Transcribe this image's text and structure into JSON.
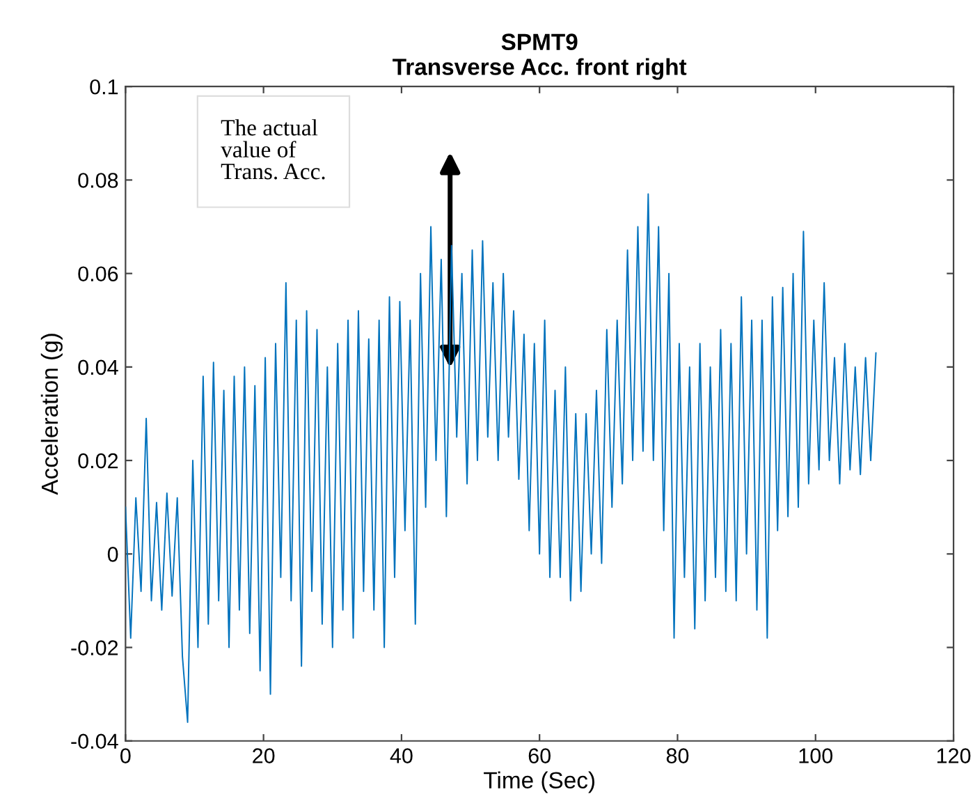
{
  "chart_data": {
    "type": "line",
    "title": "SPMT9\nTransverse Acc. front right",
    "xlabel": "Time (Sec)",
    "ylabel": "Acceleration (g)",
    "xlim": [
      0,
      120
    ],
    "xticks": [
      0,
      20,
      40,
      60,
      80,
      100,
      120
    ],
    "ylim": [
      -0.04,
      0.1
    ],
    "yticks": [
      -0.04,
      -0.02,
      0,
      0.02,
      0.04,
      0.06,
      0.08,
      0.1
    ],
    "grid": false,
    "legend": false,
    "marker": "none",
    "line_style": "solid",
    "annotations": [
      "The actual\nvalue of\nTrans. Acc."
    ],
    "series": [
      {
        "color": "#0072bd",
        "x": [
          0,
          0.75,
          1.5,
          2.25,
          3,
          3.75,
          4.5,
          5.25,
          6,
          6.75,
          7.5,
          8.25,
          9,
          9.75,
          10.5,
          11.25,
          12,
          12.75,
          13.5,
          14.25,
          15,
          15.75,
          16.5,
          17.25,
          18,
          18.75,
          19.5,
          20.25,
          21,
          21.75,
          22.5,
          23.25,
          24,
          24.75,
          25.5,
          26.25,
          27,
          27.75,
          28.5,
          29.25,
          30,
          30.75,
          31.5,
          32.25,
          33,
          33.75,
          34.5,
          35.25,
          36,
          36.75,
          37.5,
          38.25,
          39,
          39.75,
          40.5,
          41.25,
          42,
          42.75,
          43.5,
          44.25,
          45,
          45.75,
          46.5,
          47.25,
          48,
          48.75,
          49.5,
          50.25,
          51,
          51.75,
          52.5,
          53.25,
          54,
          54.75,
          55.5,
          56.25,
          57,
          57.75,
          58.5,
          59.25,
          60,
          60.75,
          61.5,
          62.25,
          63,
          63.75,
          64.5,
          65.25,
          66,
          66.75,
          67.5,
          68.25,
          69,
          69.75,
          70.5,
          71.25,
          72,
          72.75,
          73.5,
          74.25,
          75,
          75.75,
          76.5,
          77.25,
          78,
          78.75,
          79.5,
          80.25,
          81,
          81.75,
          82.5,
          83.25,
          84,
          84.75,
          85.5,
          86.25,
          87,
          87.75,
          88.5,
          89.25,
          90,
          90.75,
          91.5,
          92.25,
          93,
          93.75,
          94.5,
          95.25,
          96,
          96.75,
          97.5,
          98.25,
          99,
          99.75,
          100.5,
          101.25,
          102,
          102.75,
          103.5,
          104.25,
          105,
          105.75,
          106.5,
          107.25,
          108,
          108.75
        ],
        "values": [
          0.01,
          -0.018,
          0.012,
          -0.008,
          0.029,
          -0.01,
          0.011,
          -0.012,
          0.013,
          -0.009,
          0.012,
          -0.022,
          -0.036,
          0.02,
          -0.02,
          0.038,
          -0.015,
          0.041,
          -0.01,
          0.035,
          -0.02,
          0.038,
          -0.012,
          0.04,
          -0.017,
          0.036,
          -0.025,
          0.042,
          -0.03,
          0.045,
          -0.005,
          0.058,
          -0.01,
          0.05,
          -0.024,
          0.052,
          -0.008,
          0.048,
          -0.015,
          0.04,
          -0.02,
          0.045,
          -0.012,
          0.05,
          -0.018,
          0.052,
          -0.008,
          0.046,
          -0.012,
          0.05,
          -0.02,
          0.055,
          -0.005,
          0.054,
          0.005,
          0.05,
          -0.015,
          0.06,
          0.01,
          0.07,
          0.02,
          0.063,
          0.008,
          0.066,
          0.025,
          0.06,
          0.015,
          0.065,
          0.02,
          0.067,
          0.025,
          0.058,
          0.02,
          0.06,
          0.025,
          0.052,
          0.016,
          0.047,
          0.005,
          0.045,
          0.0,
          0.05,
          -0.005,
          0.035,
          -0.005,
          0.04,
          -0.01,
          0.03,
          -0.008,
          0.03,
          0.0,
          0.035,
          -0.002,
          0.048,
          0.01,
          0.05,
          0.015,
          0.065,
          0.02,
          0.07,
          0.022,
          0.077,
          0.02,
          0.07,
          0.005,
          0.06,
          -0.018,
          0.045,
          -0.005,
          0.04,
          -0.016,
          0.045,
          -0.01,
          0.04,
          -0.005,
          0.048,
          -0.008,
          0.045,
          -0.01,
          0.055,
          0.0,
          0.05,
          -0.012,
          0.05,
          -0.018,
          0.055,
          0.005,
          0.057,
          0.008,
          0.06,
          0.01,
          0.069,
          0.015,
          0.05,
          0.018,
          0.058,
          0.02,
          0.042,
          0.015,
          0.045,
          0.018,
          0.04,
          0.017,
          0.042,
          0.02,
          0.043
        ]
      }
    ]
  }
}
